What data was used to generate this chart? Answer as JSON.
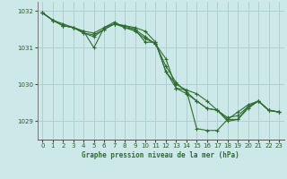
{
  "title": "Graphe pression niveau de la mer (hPa)",
  "background_color": "#cce8e8",
  "grid_color": "#aacccc",
  "line_color": "#2d6e2d",
  "marker_color": "#2d6e2d",
  "xlim": [
    -0.5,
    23.5
  ],
  "ylim": [
    1028.5,
    1032.25
  ],
  "yticks": [
    1029,
    1030,
    1031,
    1032
  ],
  "xticks": [
    0,
    1,
    2,
    3,
    4,
    5,
    6,
    7,
    8,
    9,
    10,
    11,
    12,
    13,
    14,
    15,
    16,
    17,
    18,
    19,
    20,
    21,
    22,
    23
  ],
  "series": [
    [
      1031.95,
      1031.75,
      1031.65,
      1031.55,
      1031.45,
      1031.0,
      1031.55,
      1031.7,
      1031.55,
      1031.5,
      1031.15,
      1031.15,
      1030.35,
      1029.9,
      1029.85,
      1028.8,
      1028.75,
      1028.75,
      1029.05,
      1029.05,
      1029.4,
      1029.55,
      1029.3,
      1029.25
    ],
    [
      1031.95,
      1031.75,
      1031.6,
      1031.55,
      1031.45,
      1031.4,
      1031.55,
      1031.65,
      1031.6,
      1031.55,
      1031.45,
      1031.15,
      1030.35,
      1030.0,
      1029.85,
      1029.75,
      1029.55,
      1029.3,
      1029.05,
      1029.25,
      1029.45,
      1029.55,
      1029.3,
      1029.25
    ],
    [
      1031.95,
      1031.75,
      1031.6,
      1031.55,
      1031.4,
      1031.3,
      1031.5,
      1031.65,
      1031.6,
      1031.5,
      1031.3,
      1031.1,
      1030.7,
      1029.9,
      1029.75,
      1029.55,
      1029.35,
      1029.3,
      1029.0,
      1029.05,
      1029.35,
      1029.55,
      1029.3,
      1029.25
    ],
    [
      1031.95,
      1031.75,
      1031.6,
      1031.55,
      1031.4,
      1031.35,
      1031.5,
      1031.65,
      1031.55,
      1031.45,
      1031.25,
      1031.1,
      1030.5,
      1030.05,
      1029.8,
      1029.55,
      1029.35,
      1029.3,
      1029.1,
      1029.15,
      1029.4,
      1029.55,
      1029.3,
      1029.25
    ]
  ]
}
